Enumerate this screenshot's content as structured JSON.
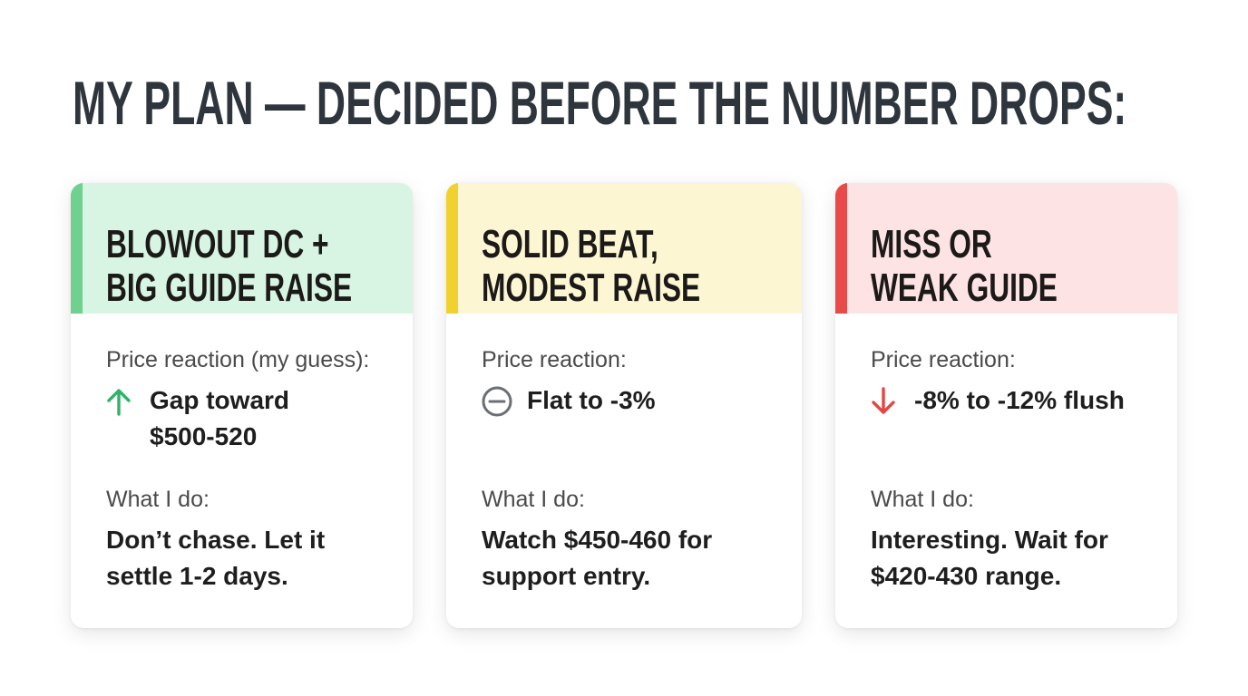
{
  "title": "MY PLAN — DECIDED BEFORE THE NUMBER DROPS:",
  "cards": [
    {
      "heading": [
        "BLOWOUT DC +",
        "BIG GUIDE RAISE"
      ],
      "reaction_label": "Price reaction (my guess):",
      "reaction": [
        "Gap toward",
        "$500-520"
      ],
      "action_label": "What I do:",
      "action": [
        "Don’t chase. Let it",
        "settle 1-2 days."
      ]
    },
    {
      "heading": [
        "SOLID BEAT,",
        "MODEST RAISE"
      ],
      "reaction_label": "Price reaction:",
      "reaction": [
        "Flat to -3%"
      ],
      "action_label": "What I do:",
      "action": [
        "Watch $450-460 for",
        "support entry."
      ]
    },
    {
      "heading": [
        "MISS OR",
        "WEAK GUIDE"
      ],
      "reaction_label": "Price reaction:",
      "reaction": [
        "-8% to -12% flush"
      ],
      "action_label": "What I do:",
      "action": [
        "Interesting. Wait for",
        "$420-430 range."
      ]
    }
  ]
}
